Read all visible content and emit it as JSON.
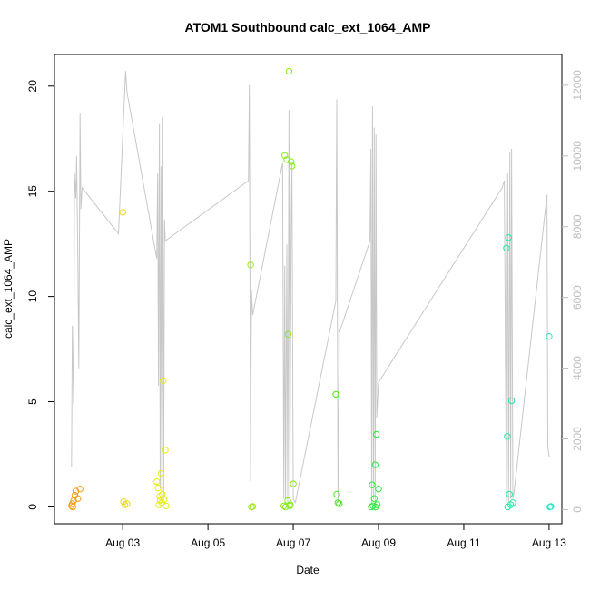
{
  "chart_data": {
    "type": "scatter",
    "title": "ATOM1 Southbound calc_ext_1064_AMP",
    "xlabel": "Date",
    "ylabel": "calc_ext_1064_AMP",
    "x_ticks": [
      "Aug 03",
      "Aug 05",
      "Aug 07",
      "Aug 09",
      "Aug 11",
      "Aug 13"
    ],
    "x_range_days": [
      1.4,
      13.3
    ],
    "y_ticks": [
      "0",
      "5",
      "10",
      "15",
      "20"
    ],
    "ylim": [
      -0.8,
      21.5
    ],
    "right_axis": {
      "ticks": [
        "0",
        "2000",
        "4000",
        "6000",
        "8000",
        "10000",
        "12000"
      ],
      "ylim": [
        -400,
        12870
      ]
    },
    "colors": {
      "line": "#c8c8c8",
      "axis_right": "#bdbdbd"
    },
    "points": [
      {
        "x": 1.8,
        "y": 0.05,
        "color": "#f39c12"
      },
      {
        "x": 1.82,
        "y": 0.15,
        "color": "#f39c12"
      },
      {
        "x": 1.85,
        "y": 0.3,
        "color": "#f39c12"
      },
      {
        "x": 1.88,
        "y": 0.55,
        "color": "#f39c12"
      },
      {
        "x": 1.9,
        "y": 0.75,
        "color": "#f39c12"
      },
      {
        "x": 1.95,
        "y": 0.4,
        "color": "#f39c12"
      },
      {
        "x": 2.0,
        "y": 0.85,
        "color": "#f39c12"
      },
      {
        "x": 1.83,
        "y": 0.0,
        "color": "#f39c12"
      },
      {
        "x": 3.0,
        "y": 14.0,
        "color": "#e9d81c"
      },
      {
        "x": 3.02,
        "y": 0.25,
        "color": "#e9d81c"
      },
      {
        "x": 3.05,
        "y": 0.1,
        "color": "#e9d81c"
      },
      {
        "x": 3.1,
        "y": 0.15,
        "color": "#e9d81c"
      },
      {
        "x": 3.8,
        "y": 1.2,
        "color": "#e6ec16"
      },
      {
        "x": 3.83,
        "y": 0.9,
        "color": "#e6ec16"
      },
      {
        "x": 3.85,
        "y": 0.1,
        "color": "#e6ec16"
      },
      {
        "x": 3.88,
        "y": 0.3,
        "color": "#e6ec16"
      },
      {
        "x": 3.9,
        "y": 1.6,
        "color": "#e6ec16"
      },
      {
        "x": 3.92,
        "y": 0.2,
        "color": "#e6ec16"
      },
      {
        "x": 3.95,
        "y": 6.0,
        "color": "#e6ec16"
      },
      {
        "x": 3.97,
        "y": 0.35,
        "color": "#e6ec16"
      },
      {
        "x": 4.0,
        "y": 2.7,
        "color": "#e6ec16"
      },
      {
        "x": 4.02,
        "y": 0.05,
        "color": "#e6ec16"
      },
      {
        "x": 3.87,
        "y": 0.5,
        "color": "#e6ec16"
      },
      {
        "x": 3.93,
        "y": 0.6,
        "color": "#e6ec16"
      },
      {
        "x": 6.0,
        "y": 11.5,
        "color": "#9ee81c"
      },
      {
        "x": 6.02,
        "y": 0.0,
        "color": "#9ee81c"
      },
      {
        "x": 6.05,
        "y": 0.02,
        "color": "#9ee81c"
      },
      {
        "x": 6.8,
        "y": 16.7,
        "color": "#86ea1a"
      },
      {
        "x": 6.82,
        "y": 0.0,
        "color": "#86ea1a"
      },
      {
        "x": 6.85,
        "y": 16.5,
        "color": "#86ea1a"
      },
      {
        "x": 6.88,
        "y": 8.2,
        "color": "#86ea1a"
      },
      {
        "x": 6.9,
        "y": 20.7,
        "color": "#86ea1a"
      },
      {
        "x": 6.92,
        "y": 0.05,
        "color": "#86ea1a"
      },
      {
        "x": 6.95,
        "y": 16.4,
        "color": "#86ea1a"
      },
      {
        "x": 6.97,
        "y": 16.2,
        "color": "#86ea1a"
      },
      {
        "x": 7.0,
        "y": 1.1,
        "color": "#86ea1a"
      },
      {
        "x": 6.87,
        "y": 0.3,
        "color": "#86ea1a"
      },
      {
        "x": 6.93,
        "y": 0.1,
        "color": "#86ea1a"
      },
      {
        "x": 6.78,
        "y": 0.05,
        "color": "#86ea1a"
      },
      {
        "x": 8.0,
        "y": 5.35,
        "color": "#4be81c"
      },
      {
        "x": 8.02,
        "y": 0.6,
        "color": "#4be81c"
      },
      {
        "x": 8.05,
        "y": 0.2,
        "color": "#4be81c"
      },
      {
        "x": 8.08,
        "y": 0.15,
        "color": "#4be81c"
      },
      {
        "x": 8.85,
        "y": 1.05,
        "color": "#2fe63a"
      },
      {
        "x": 8.87,
        "y": 0.05,
        "color": "#2fe63a"
      },
      {
        "x": 8.9,
        "y": 0.4,
        "color": "#2fe63a"
      },
      {
        "x": 8.92,
        "y": 2.0,
        "color": "#2fe63a"
      },
      {
        "x": 8.95,
        "y": 3.45,
        "color": "#2fe63a"
      },
      {
        "x": 8.97,
        "y": 0.1,
        "color": "#2fe63a"
      },
      {
        "x": 9.0,
        "y": 0.85,
        "color": "#2fe63a"
      },
      {
        "x": 8.83,
        "y": 0.0,
        "color": "#2fe63a"
      },
      {
        "x": 8.93,
        "y": 0.0,
        "color": "#2fe63a"
      },
      {
        "x": 12.0,
        "y": 12.3,
        "color": "#27e7a5"
      },
      {
        "x": 12.02,
        "y": 3.35,
        "color": "#27e7a5"
      },
      {
        "x": 12.05,
        "y": 12.8,
        "color": "#27e7a5"
      },
      {
        "x": 12.07,
        "y": 0.6,
        "color": "#27e7a5"
      },
      {
        "x": 12.1,
        "y": 0.1,
        "color": "#27e7a5"
      },
      {
        "x": 12.12,
        "y": 5.05,
        "color": "#27e7a5"
      },
      {
        "x": 12.15,
        "y": 0.2,
        "color": "#27e7a5"
      },
      {
        "x": 12.03,
        "y": 0.0,
        "color": "#27e7a5"
      },
      {
        "x": 13.0,
        "y": 8.1,
        "color": "#27e7c2"
      },
      {
        "x": 13.02,
        "y": 0.0,
        "color": "#27e7c2"
      },
      {
        "x": 13.04,
        "y": 0.02,
        "color": "#27e7c2"
      }
    ],
    "line_right": [
      [
        1.8,
        1200
      ],
      [
        1.82,
        5200
      ],
      [
        1.85,
        3000
      ],
      [
        1.87,
        9500
      ],
      [
        1.9,
        8800
      ],
      [
        1.92,
        10000
      ],
      [
        1.95,
        7000
      ],
      [
        1.97,
        4000
      ],
      [
        2.0,
        11200
      ],
      [
        2.02,
        8500
      ],
      [
        2.05,
        9100
      ],
      [
        2.9,
        7800
      ],
      [
        3.05,
        11900
      ],
      [
        3.07,
        12400
      ],
      [
        3.1,
        11800
      ],
      [
        3.8,
        7100
      ],
      [
        3.82,
        9500
      ],
      [
        3.84,
        3500
      ],
      [
        3.86,
        10900
      ],
      [
        3.88,
        600
      ],
      [
        3.9,
        9700
      ],
      [
        3.92,
        200
      ],
      [
        3.94,
        11100
      ],
      [
        3.96,
        300
      ],
      [
        3.98,
        8200
      ],
      [
        4.0,
        7600
      ],
      [
        5.95,
        9300
      ],
      [
        5.97,
        12000
      ],
      [
        6.0,
        800
      ],
      [
        6.02,
        6200
      ],
      [
        6.05,
        5500
      ],
      [
        6.75,
        9800
      ],
      [
        6.78,
        300
      ],
      [
        6.8,
        6900
      ],
      [
        6.82,
        300
      ],
      [
        6.85,
        7500
      ],
      [
        6.87,
        100
      ],
      [
        6.9,
        11300
      ],
      [
        6.92,
        100
      ],
      [
        6.95,
        7800
      ],
      [
        6.97,
        9800
      ],
      [
        7.0,
        300
      ],
      [
        7.05,
        200
      ],
      [
        8.0,
        5900
      ],
      [
        8.02,
        11600
      ],
      [
        8.05,
        200
      ],
      [
        8.08,
        5000
      ],
      [
        8.8,
        7600
      ],
      [
        8.82,
        10200
      ],
      [
        8.84,
        200
      ],
      [
        8.86,
        11400
      ],
      [
        8.88,
        300
      ],
      [
        8.9,
        10800
      ],
      [
        8.92,
        200
      ],
      [
        8.94,
        10600
      ],
      [
        8.96,
        2600
      ],
      [
        9.0,
        3600
      ],
      [
        11.9,
        9100
      ],
      [
        11.95,
        9300
      ],
      [
        12.0,
        200
      ],
      [
        12.03,
        9500
      ],
      [
        12.05,
        200
      ],
      [
        12.08,
        10100
      ],
      [
        12.1,
        300
      ],
      [
        12.12,
        10200
      ],
      [
        12.15,
        300
      ],
      [
        12.18,
        500
      ],
      [
        12.95,
        8900
      ],
      [
        12.97,
        1800
      ],
      [
        13.0,
        1500
      ]
    ]
  }
}
